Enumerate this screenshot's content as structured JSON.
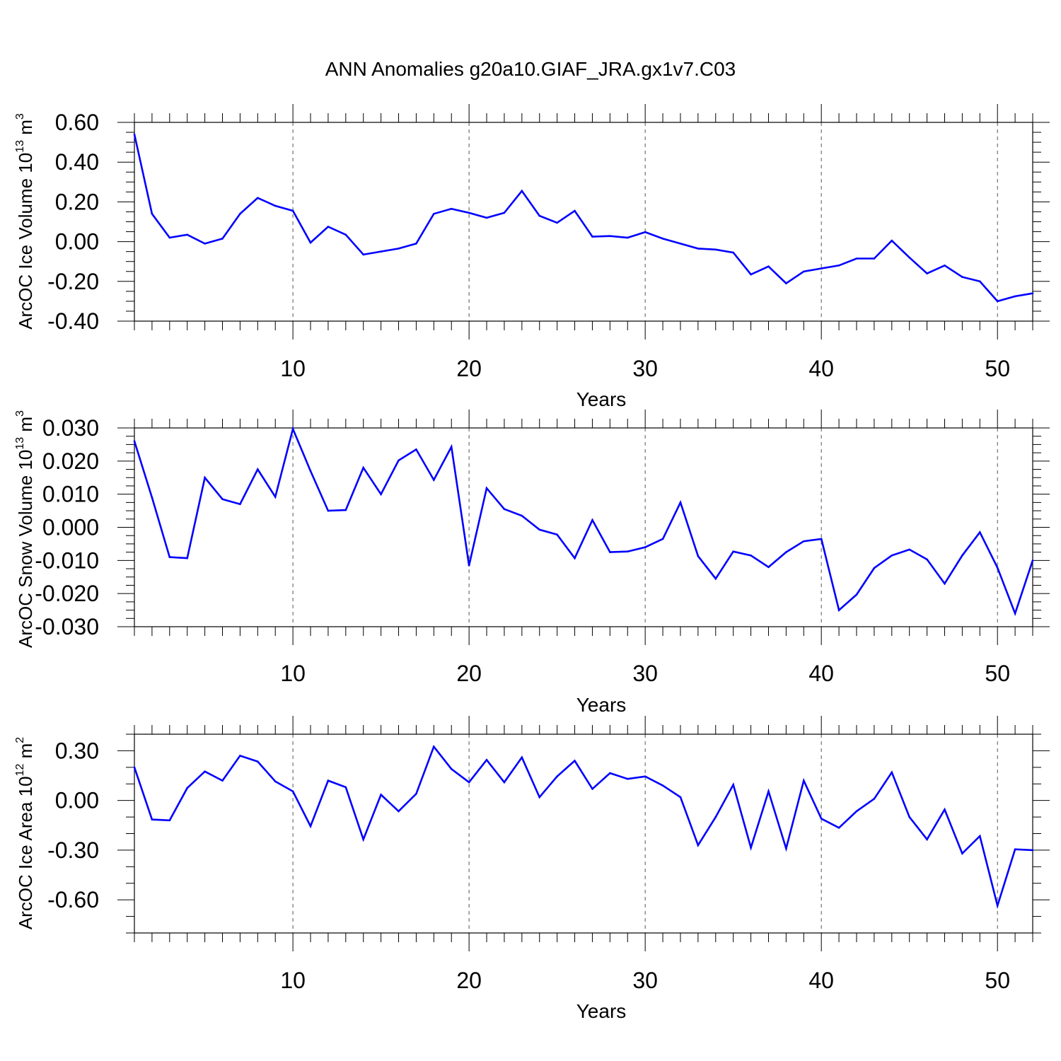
{
  "title": "ANN Anomalies g20a10.GIAF_JRA.gx1v7.C03",
  "colors": {
    "line": "#0000ff",
    "axis": "#000000",
    "grid": "#555555"
  },
  "chart_data": [
    {
      "type": "line",
      "ylabel": {
        "main": "ArcOC Ice Volume 10",
        "exp": "13",
        "unit": " m",
        "unit_exp": "3"
      },
      "xlabel": "Years",
      "xlim": [
        1,
        52
      ],
      "ylim": [
        -0.4,
        0.6
      ],
      "x_ticks": [
        10,
        20,
        30,
        40,
        50
      ],
      "x_tick_labels": [
        "10",
        "20",
        "30",
        "40",
        "50"
      ],
      "y_ticks": [
        0.6,
        0.4,
        0.2,
        0.0,
        -0.2,
        -0.4
      ],
      "y_tick_labels": [
        "0.60",
        "0.40",
        "0.20",
        "0.00",
        "-0.20",
        "-0.40"
      ],
      "y_minor_step": 0.05,
      "grid": "vertical dashed at major x ticks",
      "series": [
        {
          "x": [
            1,
            2,
            3,
            4,
            5,
            6,
            7,
            8,
            9,
            10,
            11,
            12,
            13,
            14,
            15,
            16,
            17,
            18,
            19,
            20,
            21,
            22,
            23,
            24,
            25,
            26,
            27,
            28,
            29,
            30,
            31,
            32,
            33,
            34,
            35,
            36,
            37,
            38,
            39,
            40,
            41,
            42,
            43,
            44,
            45,
            46,
            47,
            48,
            49,
            50,
            51,
            52
          ],
          "values": [
            0.54,
            0.14,
            0.02,
            0.035,
            -0.01,
            0.015,
            0.14,
            0.22,
            0.18,
            0.155,
            -0.005,
            0.075,
            0.035,
            -0.065,
            -0.05,
            -0.035,
            -0.01,
            0.14,
            0.165,
            0.145,
            0.12,
            0.145,
            0.255,
            0.13,
            0.095,
            0.155,
            0.025,
            0.028,
            0.02,
            0.048,
            0.015,
            -0.01,
            -0.035,
            -0.04,
            -0.055,
            -0.165,
            -0.125,
            -0.21,
            -0.15,
            -0.135,
            -0.12,
            -0.085,
            -0.085,
            0.005,
            -0.08,
            -0.16,
            -0.12,
            -0.178,
            -0.2,
            -0.3,
            -0.275,
            -0.26
          ]
        }
      ]
    },
    {
      "type": "line",
      "ylabel": {
        "main": "ArcOC Snow Volume 10",
        "exp": "13",
        "unit": " m",
        "unit_exp": "3"
      },
      "xlabel": "Years",
      "xlim": [
        1,
        52
      ],
      "ylim": [
        -0.03,
        0.03
      ],
      "x_ticks": [
        10,
        20,
        30,
        40,
        50
      ],
      "x_tick_labels": [
        "10",
        "20",
        "30",
        "40",
        "50"
      ],
      "y_ticks": [
        0.03,
        0.02,
        0.01,
        0.0,
        -0.01,
        -0.02,
        -0.03
      ],
      "y_tick_labels": [
        "0.030",
        "0.020",
        "0.010",
        "0.000",
        "-0.010",
        "-0.020",
        "-0.030"
      ],
      "y_minor_step": 0.0025,
      "grid": "vertical dashed at major x ticks",
      "series": [
        {
          "x": [
            1,
            2,
            3,
            4,
            5,
            6,
            7,
            8,
            9,
            10,
            11,
            12,
            13,
            14,
            15,
            16,
            17,
            18,
            19,
            20,
            21,
            22,
            23,
            24,
            25,
            26,
            27,
            28,
            29,
            30,
            31,
            32,
            33,
            34,
            35,
            36,
            37,
            38,
            39,
            40,
            41,
            42,
            43,
            44,
            45,
            46,
            47,
            48,
            49,
            50,
            51,
            52
          ],
          "values": [
            0.026,
            0.009,
            -0.009,
            -0.0093,
            0.015,
            0.0085,
            0.007,
            0.0175,
            0.0092,
            0.0297,
            0.017,
            0.005,
            0.0052,
            0.018,
            0.01,
            0.0202,
            0.0235,
            0.0143,
            0.0243,
            -0.0115,
            0.0118,
            0.0055,
            0.0035,
            -0.0007,
            -0.0022,
            -0.0093,
            0.0022,
            -0.0075,
            -0.0073,
            -0.006,
            -0.0035,
            0.0075,
            -0.0087,
            -0.0155,
            -0.0073,
            -0.0085,
            -0.012,
            -0.0075,
            -0.0042,
            -0.0035,
            -0.025,
            -0.0203,
            -0.0123,
            -0.0085,
            -0.0067,
            -0.0097,
            -0.017,
            -0.0085,
            -0.0015,
            -0.0122,
            -0.026,
            -0.01
          ]
        }
      ]
    },
    {
      "type": "line",
      "ylabel": {
        "main": "ArcOC Ice Area 10",
        "exp": "12",
        "unit": " m",
        "unit_exp": "2"
      },
      "xlabel": "Years",
      "xlim": [
        1,
        52
      ],
      "ylim": [
        -0.8,
        0.4
      ],
      "x_ticks": [
        10,
        20,
        30,
        40,
        50
      ],
      "x_tick_labels": [
        "10",
        "20",
        "30",
        "40",
        "50"
      ],
      "y_ticks": [
        0.3,
        0.0,
        -0.3,
        -0.6
      ],
      "y_tick_labels": [
        "0.30",
        "0.00",
        "-0.30",
        "-0.60"
      ],
      "y_minor_step": 0.1,
      "grid": "vertical dashed at major x ticks",
      "series": [
        {
          "x": [
            1,
            2,
            3,
            4,
            5,
            6,
            7,
            8,
            9,
            10,
            11,
            12,
            13,
            14,
            15,
            16,
            17,
            18,
            19,
            20,
            21,
            22,
            23,
            24,
            25,
            26,
            27,
            28,
            29,
            30,
            31,
            32,
            33,
            34,
            35,
            36,
            37,
            38,
            39,
            40,
            41,
            42,
            43,
            44,
            45,
            46,
            47,
            48,
            49,
            50,
            51,
            52
          ],
          "values": [
            0.2,
            -0.115,
            -0.12,
            0.075,
            0.175,
            0.12,
            0.27,
            0.235,
            0.115,
            0.055,
            -0.155,
            0.12,
            0.08,
            -0.235,
            0.035,
            -0.065,
            0.04,
            0.325,
            0.19,
            0.11,
            0.245,
            0.11,
            0.26,
            0.02,
            0.145,
            0.24,
            0.07,
            0.165,
            0.13,
            0.145,
            0.09,
            0.02,
            -0.27,
            -0.1,
            0.095,
            -0.285,
            0.055,
            -0.29,
            0.12,
            -0.11,
            -0.165,
            -0.065,
            0.01,
            0.17,
            -0.1,
            -0.235,
            -0.055,
            -0.32,
            -0.215,
            -0.635,
            -0.295,
            -0.3
          ]
        }
      ]
    }
  ]
}
